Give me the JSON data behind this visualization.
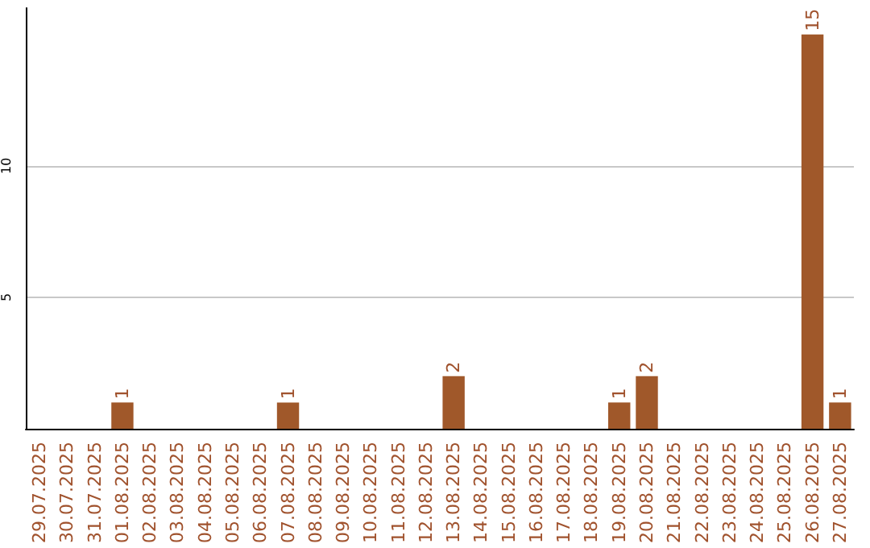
{
  "chart_data": {
    "type": "bar",
    "categories": [
      "29.07.2025",
      "30.07.2025",
      "31.07.2025",
      "01.08.2025",
      "02.08.2025",
      "03.08.2025",
      "04.08.2025",
      "05.08.2025",
      "06.08.2025",
      "07.08.2025",
      "08.08.2025",
      "09.08.2025",
      "10.08.2025",
      "11.08.2025",
      "12.08.2025",
      "13.08.2025",
      "14.08.2025",
      "15.08.2025",
      "16.08.2025",
      "17.08.2025",
      "18.08.2025",
      "19.08.2025",
      "20.08.2025",
      "21.08.2025",
      "22.08.2025",
      "23.08.2025",
      "24.08.2025",
      "25.08.2025",
      "26.08.2025",
      "27.08.2025"
    ],
    "values": [
      0,
      0,
      0,
      1,
      0,
      0,
      0,
      0,
      0,
      1,
      0,
      0,
      0,
      0,
      0,
      2,
      0,
      0,
      0,
      0,
      0,
      1,
      2,
      0,
      0,
      0,
      0,
      0,
      15,
      1
    ],
    "value_labels": [
      null,
      null,
      null,
      "1",
      null,
      null,
      null,
      null,
      null,
      "1",
      null,
      null,
      null,
      null,
      null,
      "2",
      null,
      null,
      null,
      null,
      null,
      "1",
      "2",
      null,
      null,
      null,
      null,
      null,
      "15",
      "1"
    ],
    "color": "#a0582a",
    "ylim": [
      0,
      16
    ],
    "yticks": [
      5,
      10
    ],
    "grid": "y"
  }
}
